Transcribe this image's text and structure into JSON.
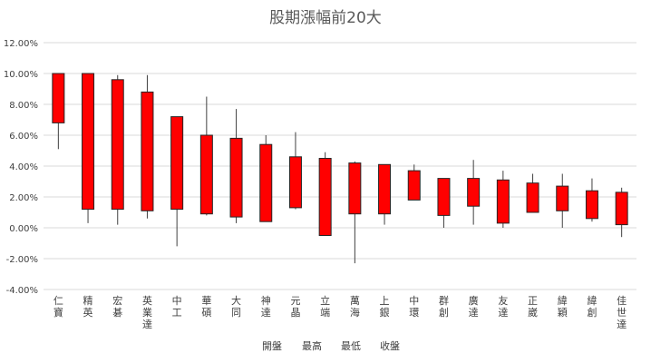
{
  "chart_data": {
    "type": "candlestick",
    "title": "股期漲幅前20大",
    "xlabel": "",
    "ylabel": "",
    "ylim": [
      -4,
      12
    ],
    "y_tick_step": 2,
    "y_tick_labels": [
      "-4.00%",
      "-2.00%",
      "0.00%",
      "2.00%",
      "4.00%",
      "6.00%",
      "8.00%",
      "10.00%",
      "12.00%"
    ],
    "grid": true,
    "legend_position": "bottom",
    "legend": [
      "開盤",
      "最高",
      "最低",
      "收盤"
    ],
    "categories": [
      "仁寶",
      "精英",
      "宏碁",
      "英業達",
      "中工",
      "華碩",
      "大同",
      "神達",
      "元晶",
      "立端",
      "萬海",
      "上銀",
      "中環",
      "群創",
      "廣達",
      "友達",
      "正崴",
      "緯穎",
      "緯創",
      "佳世達"
    ],
    "series": [
      {
        "name": "開盤",
        "values": [
          6.8,
          1.2,
          1.2,
          1.1,
          1.2,
          0.9,
          0.7,
          0.4,
          1.3,
          -0.5,
          0.9,
          0.9,
          1.8,
          0.8,
          1.4,
          0.3,
          1.0,
          1.1,
          0.6,
          0.2
        ]
      },
      {
        "name": "最高",
        "values": [
          10.0,
          10.0,
          9.9,
          9.9,
          7.2,
          8.5,
          7.7,
          6.0,
          6.2,
          4.9,
          4.3,
          4.1,
          4.1,
          3.2,
          4.4,
          3.7,
          3.5,
          3.5,
          3.2,
          2.6
        ]
      },
      {
        "name": "最低",
        "values": [
          5.1,
          0.3,
          0.2,
          0.6,
          -1.2,
          0.8,
          0.3,
          0.4,
          1.2,
          -0.5,
          -2.3,
          0.2,
          1.8,
          0.0,
          0.2,
          0.0,
          1.0,
          0.0,
          0.4,
          -0.6
        ]
      },
      {
        "name": "收盤",
        "values": [
          10.0,
          10.0,
          9.6,
          8.8,
          7.2,
          6.0,
          5.8,
          5.4,
          4.6,
          4.5,
          4.2,
          4.1,
          3.7,
          3.2,
          3.2,
          3.1,
          2.9,
          2.7,
          2.4,
          2.3
        ]
      }
    ],
    "colors": {
      "up": "#ff0000",
      "border": "#262626",
      "wick": "#404040",
      "grid": "#d9d9d9",
      "text": "#404040",
      "title": "#595959"
    }
  }
}
